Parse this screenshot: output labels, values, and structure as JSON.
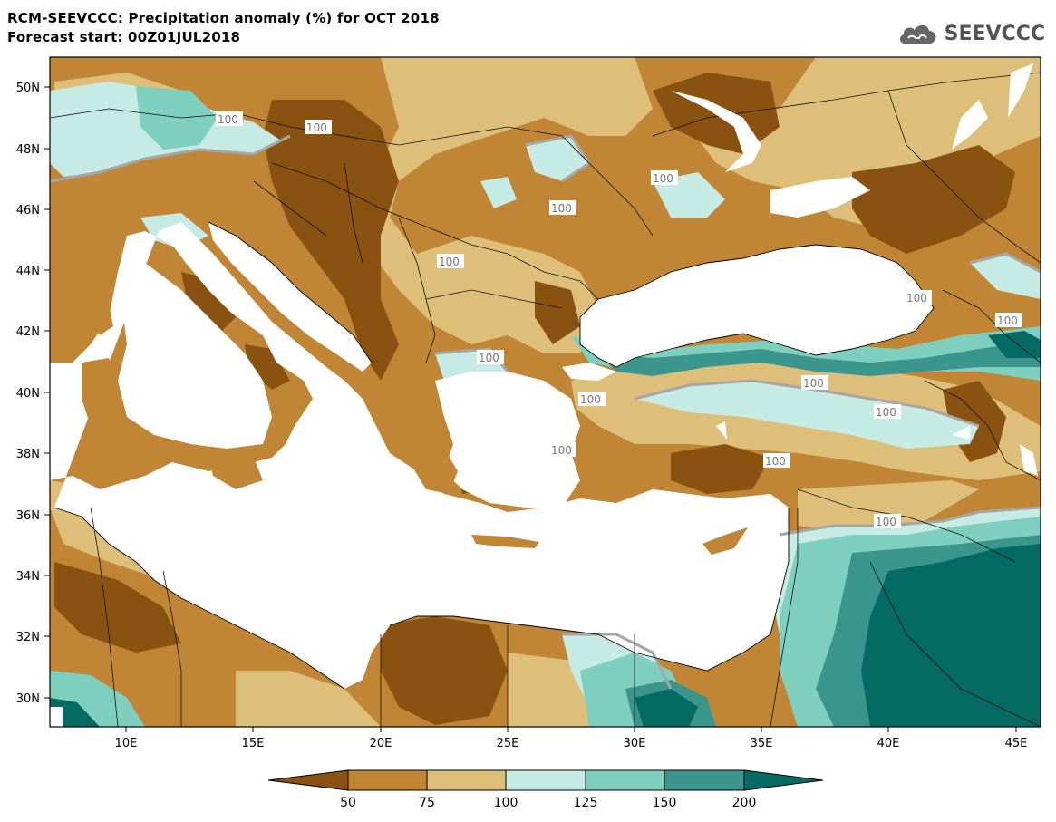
{
  "title": {
    "line1": "RCM-SEEVCCC: Precipitation anomaly (%) for OCT 2018",
    "line2": "Forecast start: 00Z01JUL2018"
  },
  "logo": {
    "text": "SEEVCCC",
    "icon": "cloud-icon"
  },
  "map": {
    "lon_labels": [
      "10E",
      "15E",
      "20E",
      "25E",
      "30E",
      "35E",
      "40E",
      "45E"
    ],
    "lat_labels": [
      "50N",
      "48N",
      "46N",
      "44N",
      "42N",
      "40N",
      "38N",
      "36N",
      "34N",
      "32N",
      "30N"
    ],
    "contour_labels": [
      "100",
      "100",
      "100",
      "100",
      "100",
      "100",
      "100",
      "100",
      "100",
      "100",
      "100",
      "100",
      "100",
      "100"
    ]
  },
  "colorbar": {
    "colors": [
      "#8a5210",
      "#c08636",
      "#ddbf7a",
      "#c6ebe4",
      "#7fcfbf",
      "#3a968c",
      "#056a63"
    ],
    "tick_labels": [
      "50",
      "75",
      "100",
      "125",
      "150",
      "200"
    ]
  },
  "palette": {
    "land_dark": "#8a5210",
    "land_mid": "#c08636",
    "land_light": "#ddbf7a",
    "wet_light": "#c6ebe4",
    "wet_mid": "#7fcfbf",
    "wet_dark": "#3a968c",
    "wet_darkest": "#056a63",
    "sea": "#ffffff"
  }
}
